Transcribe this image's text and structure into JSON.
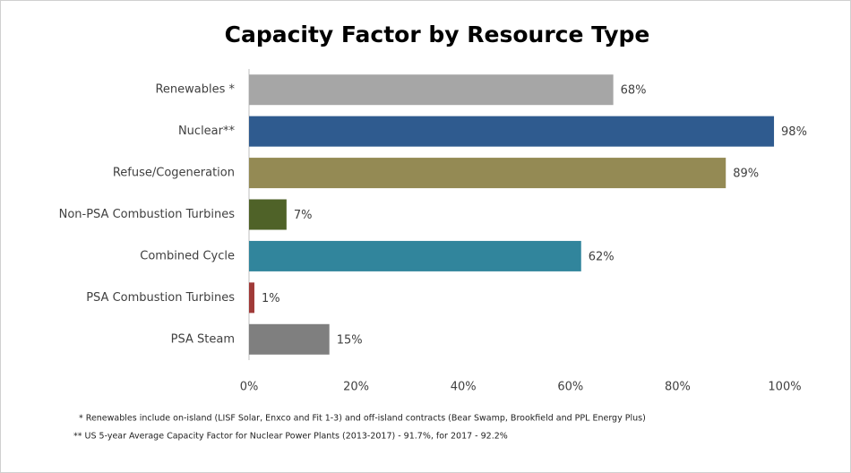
{
  "chart_data": {
    "type": "barh",
    "title": "Capacity Factor by Resource Type",
    "categories": [
      "Renewables *",
      "Nuclear**",
      "Refuse/Cogeneration",
      "Non-PSA Combustion Turbines",
      "Combined Cycle",
      "PSA Combustion Turbines",
      "PSA Steam"
    ],
    "values": [
      68,
      98,
      89,
      7,
      62,
      1,
      15
    ],
    "value_labels": [
      "68%",
      "98%",
      "89%",
      "7%",
      "62%",
      "1%",
      "15%"
    ],
    "colors": [
      "#a6a6a6",
      "#2f5b8f",
      "#948a54",
      "#4f6228",
      "#31859c",
      "#a03a38",
      "#7f7f7f"
    ],
    "xlim": [
      0,
      100
    ],
    "xticks": [
      {
        "value": 0,
        "label": "0%"
      },
      {
        "value": 20,
        "label": "20%"
      },
      {
        "value": 40,
        "label": "40%"
      },
      {
        "value": 60,
        "label": "60%"
      },
      {
        "value": 80,
        "label": "80%"
      },
      {
        "value": 100,
        "label": "100%"
      }
    ],
    "grid": false,
    "annotations": [
      "*  Renewables include on-island (LISF Solar, Enxco and Fit 1-3) and off-island contracts (Bear Swamp, Brookfield and PPL Energy Plus)",
      "**  US 5-year Average Capacity Factor for Nuclear Power Plants (2013-2017) - 91.7%, for 2017 - 92.2%"
    ]
  }
}
